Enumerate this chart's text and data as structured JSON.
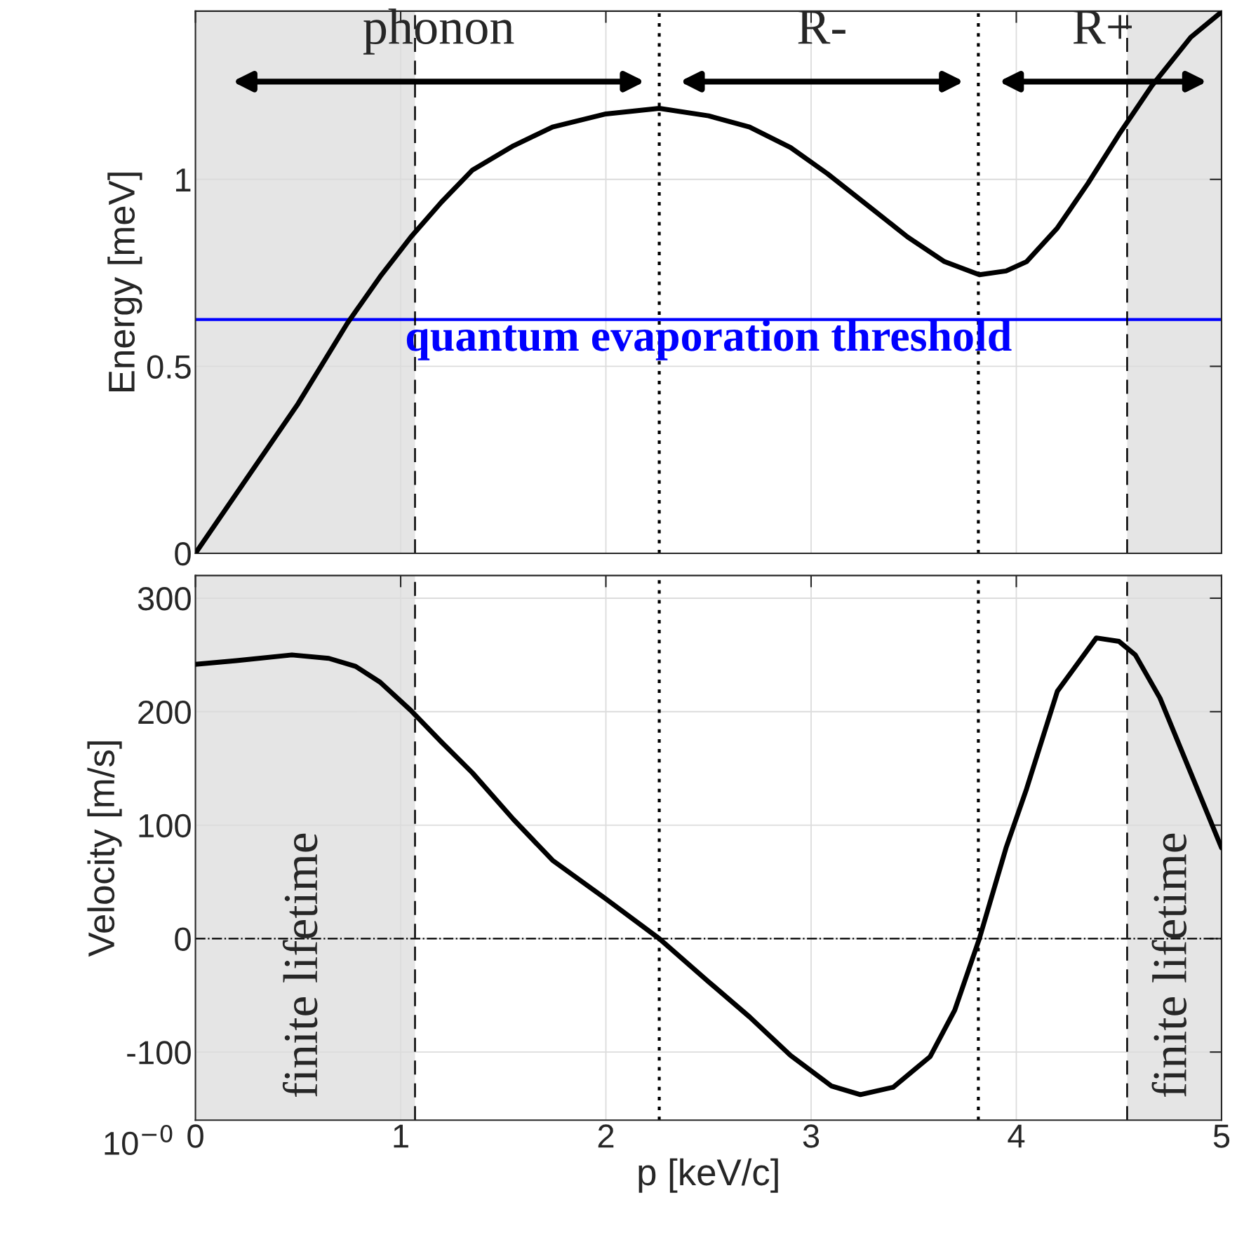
{
  "chart_data": [
    {
      "type": "line",
      "ylabel": "Energy [meV]",
      "xlim": [
        0,
        5
      ],
      "xticks": [
        0,
        1,
        2,
        3,
        4,
        5
      ],
      "ylim": [
        0,
        1.45
      ],
      "yticks": [
        0,
        0.5,
        1
      ],
      "grid": true,
      "tick_labels": "y",
      "series": [
        {
          "color": "#000000",
          "x": [
            0,
            0.25,
            0.5,
            0.74,
            0.9,
            1.05,
            1.2,
            1.35,
            1.55,
            1.74,
            2.0,
            2.26,
            2.5,
            2.7,
            2.9,
            3.08,
            3.3,
            3.47,
            3.65,
            3.82,
            3.95,
            4.05,
            4.2,
            4.35,
            4.5,
            4.66,
            4.85,
            5.0
          ],
          "values": [
            0,
            0.2,
            0.4,
            0.615,
            0.74,
            0.846,
            0.94,
            1.025,
            1.09,
            1.14,
            1.175,
            1.19,
            1.17,
            1.14,
            1.085,
            1.015,
            0.92,
            0.846,
            0.78,
            0.745,
            0.755,
            0.78,
            0.87,
            0.99,
            1.12,
            1.25,
            1.38,
            1.448
          ]
        }
      ],
      "ref_lines": [
        {
          "axis": "y",
          "value": 0.625,
          "label": "quantum evaporation threshold",
          "color": "#0000ff",
          "line_style": "solid"
        },
        {
          "axis": "x",
          "value": 2.26,
          "color": "#000000",
          "line_style": "dotted"
        },
        {
          "axis": "x",
          "value": 3.815,
          "color": "#000000",
          "line_style": "dotted"
        },
        {
          "axis": "x",
          "value": 1.07,
          "color": "#000000",
          "line_style": "dashed"
        },
        {
          "axis": "x",
          "value": 4.54,
          "color": "#000000",
          "line_style": "dashed"
        }
      ],
      "bands": [
        {
          "axis": "x",
          "from": 0,
          "to": 1.07,
          "color": "#e5e5e5"
        },
        {
          "axis": "x",
          "from": 4.54,
          "to": 5,
          "color": "#e5e5e5"
        }
      ],
      "annotations": [
        "phonon",
        "R-",
        "R+"
      ]
    },
    {
      "type": "line",
      "xlabel": "p [keV/c]",
      "ylabel": "Velocity [m/s]",
      "xlim": [
        0,
        5
      ],
      "xticks": [
        0,
        1,
        2,
        3,
        4,
        5
      ],
      "ylim": [
        -160,
        320
      ],
      "yticks": [
        -100,
        0,
        100,
        200,
        300
      ],
      "grid": true,
      "series": [
        {
          "color": "#000000",
          "x": [
            0,
            0.2,
            0.47,
            0.65,
            0.78,
            0.9,
            1.05,
            1.2,
            1.35,
            1.55,
            1.74,
            2.0,
            2.26,
            2.5,
            2.7,
            2.9,
            3.1,
            3.24,
            3.4,
            3.58,
            3.7,
            3.82,
            3.95,
            4.05,
            4.2,
            4.39,
            4.5,
            4.58,
            4.7,
            4.85,
            5.0
          ],
          "values": [
            241.7,
            245,
            250,
            247,
            240,
            226,
            201,
            173,
            146,
            105,
            69,
            35,
            0,
            -38,
            -69,
            -103,
            -130,
            -137.5,
            -131,
            -104,
            -63,
            0,
            80,
            132,
            218,
            265,
            262,
            250,
            212,
            146,
            80
          ]
        }
      ],
      "ref_lines": [
        {
          "axis": "y",
          "value": 0,
          "color": "#000000",
          "line_style": "dashdot"
        },
        {
          "axis": "x",
          "value": 2.26,
          "color": "#000000",
          "line_style": "dotted"
        },
        {
          "axis": "x",
          "value": 3.815,
          "color": "#000000",
          "line_style": "dotted"
        },
        {
          "axis": "x",
          "value": 1.07,
          "color": "#000000",
          "line_style": "dashed"
        },
        {
          "axis": "x",
          "value": 4.54,
          "color": "#000000",
          "line_style": "dashed"
        }
      ],
      "bands": [
        {
          "axis": "x",
          "from": 0,
          "to": 1.07,
          "label": "finite lifetime",
          "color": "#e5e5e5"
        },
        {
          "axis": "x",
          "from": 4.54,
          "to": 5,
          "label": "finite lifetime",
          "color": "#e5e5e5"
        }
      ],
      "annotations": [
        "10$^{−0}$"
      ]
    }
  ]
}
